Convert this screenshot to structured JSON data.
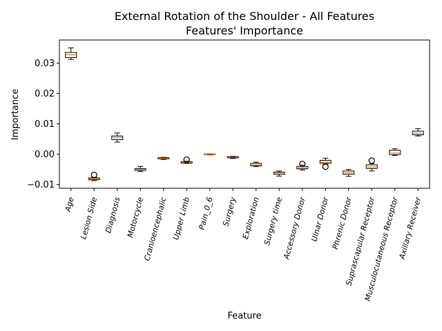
{
  "chart_data": {
    "type": "box",
    "title": "External Rotation of the Shoulder - All Features",
    "subtitle": "Features' Importance",
    "xlabel": "Feature",
    "ylabel": "Importance",
    "ylim": [
      -0.0112,
      0.0376
    ],
    "yticks": [
      -0.01,
      0.0,
      0.01,
      0.02,
      0.03
    ],
    "ytick_labels": [
      "−0.01",
      "0.00",
      "0.01",
      "0.02",
      "0.03"
    ],
    "grid": false,
    "median_color": "#ff7f0e",
    "categories": [
      "Age",
      "Lesion Side",
      "Diagnosis",
      "Motorcycle",
      "Cranioencephalic",
      "Upper Limb",
      "Pain_0_6",
      "Surgery",
      "Exploration",
      "Surgery time",
      "Accessory Donor",
      "Ulnar Donor",
      "Phrenic Donor",
      "Suprascapular Receptor",
      "Musculocutaneous Receptor",
      "Axillary Receiver"
    ],
    "boxes": [
      {
        "whislo": 0.0312,
        "q1": 0.0318,
        "med": 0.0328,
        "q3": 0.0335,
        "whishi": 0.035,
        "fliers": []
      },
      {
        "whislo": -0.0087,
        "q1": -0.0084,
        "med": -0.0081,
        "q3": -0.0078,
        "whishi": -0.0076,
        "fliers": [
          -0.0068
        ]
      },
      {
        "whislo": 0.004,
        "q1": 0.0048,
        "med": 0.0055,
        "q3": 0.006,
        "whishi": 0.007,
        "fliers": []
      },
      {
        "whislo": -0.0057,
        "q1": -0.0053,
        "med": -0.005,
        "q3": -0.0047,
        "whishi": -0.004,
        "fliers": []
      },
      {
        "whislo": -0.0017,
        "q1": -0.0015,
        "med": -0.0013,
        "q3": -0.0011,
        "whishi": -0.001,
        "fliers": []
      },
      {
        "whislo": -0.003,
        "q1": -0.0029,
        "med": -0.0026,
        "q3": -0.0024,
        "whishi": -0.0023,
        "fliers": [
          -0.0018
        ]
      },
      {
        "whislo": -0.0002,
        "q1": -0.0001,
        "med": 0.0,
        "q3": 0.0001,
        "whishi": 0.0001,
        "fliers": []
      },
      {
        "whislo": -0.0014,
        "q1": -0.0012,
        "med": -0.001,
        "q3": -0.0008,
        "whishi": -0.0007,
        "fliers": []
      },
      {
        "whislo": -0.004,
        "q1": -0.0038,
        "med": -0.0035,
        "q3": -0.003,
        "whishi": -0.0026,
        "fliers": []
      },
      {
        "whislo": -0.0072,
        "q1": -0.0066,
        "med": -0.0062,
        "q3": -0.0059,
        "whishi": -0.0055,
        "fliers": []
      },
      {
        "whislo": -0.0052,
        "q1": -0.0048,
        "med": -0.0045,
        "q3": -0.004,
        "whishi": -0.0036,
        "fliers": [
          -0.0032
        ]
      },
      {
        "whislo": -0.0033,
        "q1": -0.003,
        "med": -0.0026,
        "q3": -0.002,
        "whishi": -0.0013,
        "fliers": [
          -0.0041
        ]
      },
      {
        "whislo": -0.0073,
        "q1": -0.0066,
        "med": -0.0061,
        "q3": -0.0055,
        "whishi": -0.005,
        "fliers": []
      },
      {
        "whislo": -0.0055,
        "q1": -0.0047,
        "med": -0.0042,
        "q3": -0.0035,
        "whishi": -0.0031,
        "fliers": [
          -0.0021
        ]
      },
      {
        "whislo": -0.0004,
        "q1": -0.0001,
        "med": 0.0004,
        "q3": 0.0013,
        "whishi": 0.0018,
        "fliers": []
      },
      {
        "whislo": 0.006,
        "q1": 0.0064,
        "med": 0.0069,
        "q3": 0.0076,
        "whishi": 0.0084,
        "fliers": []
      }
    ]
  }
}
